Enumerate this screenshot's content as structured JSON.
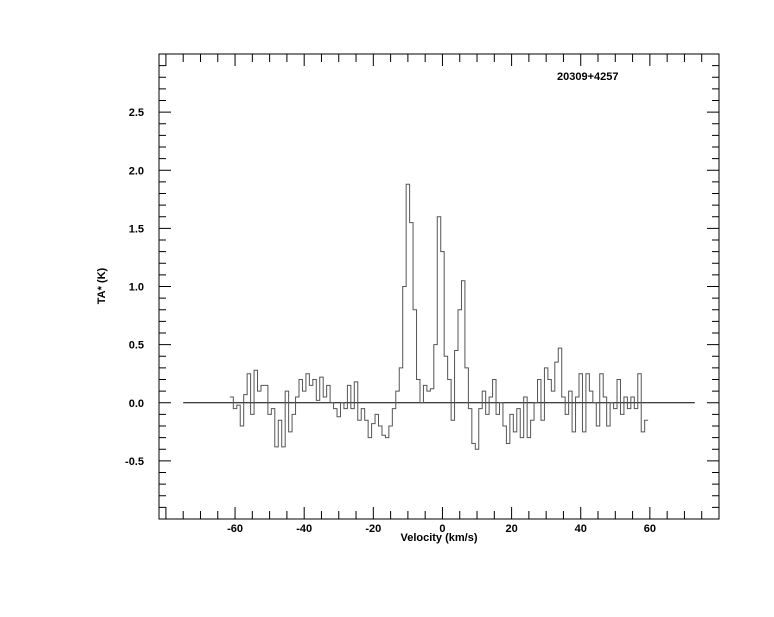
{
  "chart_data": {
    "type": "line",
    "style": "step",
    "title": "20309+4257",
    "xlabel": "Velocity (km/s)",
    "ylabel": "TA* (K)",
    "xlim": [
      -82,
      80
    ],
    "ylim": [
      -1.0,
      3.0
    ],
    "x_ticks": [
      -60,
      -40,
      -20,
      0,
      20,
      40,
      60
    ],
    "x_tick_labels": [
      "-60",
      "-40",
      "-20",
      "0",
      "20",
      "40",
      "60"
    ],
    "y_ticks": [
      -0.5,
      0.0,
      0.5,
      1.0,
      1.5,
      2.0,
      2.5
    ],
    "y_tick_labels": [
      "-0.5",
      "0.0",
      "0.5",
      "1.0",
      "1.5",
      "2.0",
      "2.5"
    ],
    "baseline": {
      "y": 0.0,
      "x_range": [
        -75,
        73
      ]
    },
    "grid": false,
    "line_color": "#555555",
    "x": [
      -61,
      -60,
      -59,
      -58,
      -57,
      -56,
      -55,
      -54,
      -53,
      -52,
      -51,
      -50,
      -49,
      -48,
      -47,
      -46,
      -45,
      -44,
      -43,
      -42,
      -41,
      -40,
      -39,
      -38,
      -37,
      -36,
      -35,
      -34,
      -33,
      -32,
      -31,
      -30,
      -29,
      -28,
      -27,
      -26,
      -25,
      -24,
      -23,
      -22,
      -21,
      -20,
      -19,
      -18,
      -17,
      -16,
      -15,
      -14,
      -13,
      -12,
      -11,
      -10,
      -9,
      -8,
      -7,
      -6,
      -5,
      -4,
      -3,
      -2,
      -1,
      0,
      1,
      2,
      3,
      4,
      5,
      6,
      7,
      8,
      9,
      10,
      11,
      12,
      13,
      14,
      15,
      16,
      17,
      18,
      19,
      20,
      21,
      22,
      23,
      24,
      25,
      26,
      27,
      28,
      29,
      30,
      31,
      32,
      33,
      34,
      35,
      36,
      37,
      38,
      39,
      40,
      41,
      42,
      43,
      44,
      45,
      46,
      47,
      48,
      49,
      50,
      51,
      52,
      53,
      54,
      55,
      56,
      57,
      58,
      59
    ],
    "y": [
      0.05,
      -0.05,
      -0.02,
      -0.2,
      0.07,
      0.25,
      -0.1,
      0.28,
      0.1,
      0.15,
      0.15,
      -0.1,
      -0.05,
      -0.38,
      -0.15,
      -0.38,
      0.1,
      -0.25,
      -0.1,
      0.05,
      0.2,
      0.1,
      0.25,
      0.15,
      0.2,
      0.02,
      0.22,
      0.05,
      0.15,
      0.0,
      -0.05,
      -0.12,
      0.0,
      -0.05,
      0.15,
      -0.05,
      0.18,
      -0.15,
      -0.05,
      -0.15,
      -0.3,
      -0.18,
      -0.1,
      -0.2,
      -0.28,
      -0.3,
      -0.2,
      -0.05,
      0.1,
      0.3,
      1.0,
      1.88,
      1.55,
      0.8,
      0.2,
      0.0,
      0.15,
      0.1,
      0.12,
      0.5,
      1.6,
      1.3,
      0.4,
      0.2,
      -0.15,
      0.45,
      0.8,
      1.05,
      0.3,
      -0.05,
      -0.35,
      -0.4,
      -0.05,
      0.1,
      -0.1,
      0.05,
      0.2,
      -0.1,
      0.0,
      -0.2,
      -0.35,
      -0.1,
      -0.25,
      -0.05,
      -0.3,
      0.05,
      -0.3,
      -0.15,
      0.0,
      0.2,
      -0.15,
      0.3,
      0.2,
      0.1,
      0.35,
      0.47,
      0.05,
      -0.1,
      0.1,
      -0.25,
      0.05,
      0.25,
      -0.25,
      0.25,
      0.1,
      0.0,
      -0.2,
      0.25,
      0.05,
      -0.2,
      0.0,
      -0.05,
      0.2,
      -0.1,
      0.05,
      -0.05,
      0.05,
      -0.05,
      0.25,
      -0.25,
      -0.15
    ]
  }
}
